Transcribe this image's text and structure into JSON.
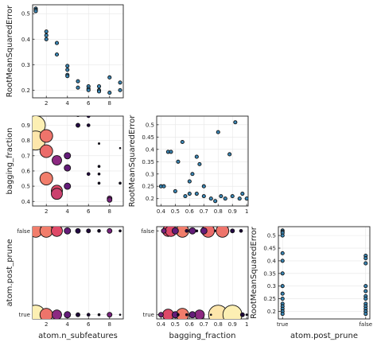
{
  "chart_data": [
    {
      "id": "p11",
      "type": "scatter",
      "xlabel": "",
      "ylabel": "RootMeanSquaredError",
      "xlim": [
        0.7,
        9.3
      ],
      "ylim": [
        0.17,
        0.535
      ],
      "xticks": [
        2,
        4,
        6,
        8
      ],
      "yticks": [
        0.2,
        0.3,
        0.4,
        0.5
      ],
      "grid": true,
      "marker_color": "#3a87b6",
      "points": [
        [
          1,
          0.52
        ],
        [
          1,
          0.515
        ],
        [
          1,
          0.51
        ],
        [
          2,
          0.43
        ],
        [
          2,
          0.415
        ],
        [
          2,
          0.4
        ],
        [
          3,
          0.385
        ],
        [
          3,
          0.34
        ],
        [
          4,
          0.295
        ],
        [
          4,
          0.28
        ],
        [
          4,
          0.26
        ],
        [
          4,
          0.255
        ],
        [
          5,
          0.235
        ],
        [
          5,
          0.21
        ],
        [
          6,
          0.215
        ],
        [
          6,
          0.205
        ],
        [
          6,
          0.2
        ],
        [
          7,
          0.215
        ],
        [
          7,
          0.2
        ],
        [
          7,
          0.195
        ],
        [
          8,
          0.25
        ],
        [
          8,
          0.19
        ],
        [
          9,
          0.23
        ],
        [
          9,
          0.2
        ]
      ]
    },
    {
      "id": "p21",
      "type": "scatter",
      "xlabel": "",
      "ylabel": "bagging_fraction",
      "xlim": [
        0.7,
        9.3
      ],
      "ylim": [
        0.37,
        0.96
      ],
      "xticks": [
        2,
        4,
        6,
        8
      ],
      "yticks": [
        0.4,
        0.5,
        0.6,
        0.7,
        0.8,
        0.9
      ],
      "grid": true,
      "colorscale": [
        "#000004",
        "#3b0f70",
        "#8c2981",
        "#de4968",
        "#fe9f6d",
        "#fcfdbf"
      ],
      "points": [
        {
          "x": 1,
          "y": 0.9,
          "c": 0.97,
          "s": 12
        },
        {
          "x": 1,
          "y": 0.8,
          "c": 0.95,
          "s": 12
        },
        {
          "x": 2,
          "y": 0.83,
          "c": 0.7,
          "s": 8
        },
        {
          "x": 2,
          "y": 0.73,
          "c": 0.68,
          "s": 8
        },
        {
          "x": 2,
          "y": 0.55,
          "c": 0.72,
          "s": 8
        },
        {
          "x": 3,
          "y": 0.67,
          "c": 0.4,
          "s": 6
        },
        {
          "x": 3,
          "y": 0.47,
          "c": 0.6,
          "s": 7
        },
        {
          "x": 3,
          "y": 0.45,
          "c": 0.55,
          "s": 7
        },
        {
          "x": 4,
          "y": 0.7,
          "c": 0.3,
          "s": 4
        },
        {
          "x": 4,
          "y": 0.62,
          "c": 0.3,
          "s": 4
        },
        {
          "x": 4,
          "y": 0.5,
          "c": 0.3,
          "s": 4
        },
        {
          "x": 5,
          "y": 0.97,
          "c": 0.1,
          "s": 2.5
        },
        {
          "x": 5,
          "y": 0.9,
          "c": 0.12,
          "s": 2.5
        },
        {
          "x": 6,
          "y": 0.96,
          "c": 0.08,
          "s": 2
        },
        {
          "x": 6,
          "y": 0.9,
          "c": 0.08,
          "s": 2
        },
        {
          "x": 6,
          "y": 0.58,
          "c": 0.1,
          "s": 2
        },
        {
          "x": 7,
          "y": 1.0,
          "c": 0.05,
          "s": 1.2
        },
        {
          "x": 7,
          "y": 0.78,
          "c": 0.05,
          "s": 1.2
        },
        {
          "x": 7,
          "y": 0.63,
          "c": 0.05,
          "s": 1.5
        },
        {
          "x": 7,
          "y": 0.58,
          "c": 0.05,
          "s": 1.5
        },
        {
          "x": 7,
          "y": 0.52,
          "c": 0.05,
          "s": 1.5
        },
        {
          "x": 8,
          "y": 0.42,
          "c": 0.35,
          "s": 3
        },
        {
          "x": 8,
          "y": 0.41,
          "c": 0.35,
          "s": 3
        },
        {
          "x": 9,
          "y": 0.75,
          "c": 0.05,
          "s": 1
        },
        {
          "x": 9,
          "y": 0.52,
          "c": 0.05,
          "s": 1.5
        }
      ]
    },
    {
      "id": "p22",
      "type": "scatter",
      "xlabel": "",
      "ylabel": "RootMeanSquaredError",
      "xlim": [
        0.37,
        1.01
      ],
      "ylim": [
        0.17,
        0.535
      ],
      "xticks": [
        0.4,
        0.5,
        0.6,
        0.7,
        0.8,
        0.9,
        1.0
      ],
      "yticks": [
        0.2,
        0.25,
        0.3,
        0.35,
        0.4,
        0.45,
        0.5
      ],
      "grid": true,
      "marker_color": "#3a87b6",
      "points": [
        [
          0.4,
          0.25
        ],
        [
          0.42,
          0.25
        ],
        [
          0.45,
          0.39
        ],
        [
          0.47,
          0.39
        ],
        [
          0.5,
          0.23
        ],
        [
          0.52,
          0.35
        ],
        [
          0.55,
          0.43
        ],
        [
          0.57,
          0.21
        ],
        [
          0.6,
          0.22
        ],
        [
          0.6,
          0.27
        ],
        [
          0.62,
          0.3
        ],
        [
          0.65,
          0.37
        ],
        [
          0.65,
          0.22
        ],
        [
          0.67,
          0.34
        ],
        [
          0.7,
          0.25
        ],
        [
          0.7,
          0.21
        ],
        [
          0.75,
          0.2
        ],
        [
          0.78,
          0.19
        ],
        [
          0.8,
          0.47
        ],
        [
          0.82,
          0.21
        ],
        [
          0.85,
          0.2
        ],
        [
          0.88,
          0.38
        ],
        [
          0.9,
          0.21
        ],
        [
          0.92,
          0.51
        ],
        [
          0.95,
          0.2
        ],
        [
          0.97,
          0.22
        ],
        [
          1.0,
          0.2
        ]
      ]
    },
    {
      "id": "p31",
      "type": "scatter",
      "xlabel": "atom.n_subfeatures",
      "ylabel": "atom.post_prune",
      "xlim": [
        0.7,
        9.3
      ],
      "ylim": [
        -0.05,
        1.05
      ],
      "xticks": [
        2,
        4,
        6,
        8
      ],
      "ytick_labels": [
        "true",
        "false"
      ],
      "grid": true,
      "colorscale": [
        "#000004",
        "#3b0f70",
        "#8c2981",
        "#de4968",
        "#fe9f6d",
        "#fcfdbf"
      ],
      "points": [
        {
          "x": 1,
          "y": 1,
          "c": 0.72,
          "s": 8
        },
        {
          "x": 2,
          "y": 1,
          "c": 0.72,
          "s": 8
        },
        {
          "x": 3,
          "y": 1,
          "c": 0.6,
          "s": 7
        },
        {
          "x": 4,
          "y": 1,
          "c": 0.3,
          "s": 4
        },
        {
          "x": 5,
          "y": 1,
          "c": 0.12,
          "s": 3
        },
        {
          "x": 6,
          "y": 1,
          "c": 0.1,
          "s": 2.5
        },
        {
          "x": 7,
          "y": 1,
          "c": 0.05,
          "s": 2
        },
        {
          "x": 8,
          "y": 1,
          "c": 0.35,
          "s": 3
        },
        {
          "x": 9,
          "y": 1,
          "c": 0.05,
          "s": 1.5
        },
        {
          "x": 1,
          "y": 0,
          "c": 0.97,
          "s": 12
        },
        {
          "x": 2,
          "y": 0,
          "c": 0.7,
          "s": 8
        },
        {
          "x": 3,
          "y": 0,
          "c": 0.4,
          "s": 6
        },
        {
          "x": 4,
          "y": 0,
          "c": 0.3,
          "s": 4
        },
        {
          "x": 5,
          "y": 0,
          "c": 0.1,
          "s": 2.5
        },
        {
          "x": 6,
          "y": 0,
          "c": 0.08,
          "s": 2
        },
        {
          "x": 7,
          "y": 0,
          "c": 0.05,
          "s": 1.5
        },
        {
          "x": 8,
          "y": 0,
          "c": 0.35,
          "s": 3
        },
        {
          "x": 9,
          "y": 0,
          "c": 0.05,
          "s": 1
        }
      ]
    },
    {
      "id": "p32",
      "type": "scatter",
      "xlabel": "bagging_fraction",
      "ylabel": "",
      "xlim": [
        0.37,
        1.01
      ],
      "ylim": [
        -0.05,
        1.05
      ],
      "xticks": [
        0.4,
        0.5,
        0.6,
        0.7,
        0.8,
        0.9,
        1.0
      ],
      "ytick_labels": [
        "true",
        "false"
      ],
      "grid": true,
      "colorscale": [
        "#000004",
        "#3b0f70",
        "#8c2981",
        "#de4968",
        "#fe9f6d",
        "#fcfdbf"
      ],
      "points": [
        {
          "x": 0.42,
          "y": 1,
          "c": 0.35,
          "s": 3
        },
        {
          "x": 0.45,
          "y": 1,
          "c": 0.6,
          "s": 7
        },
        {
          "x": 0.47,
          "y": 1,
          "c": 0.6,
          "s": 7
        },
        {
          "x": 0.5,
          "y": 1,
          "c": 0.3,
          "s": 4
        },
        {
          "x": 0.55,
          "y": 1,
          "c": 0.72,
          "s": 8
        },
        {
          "x": 0.58,
          "y": 1,
          "c": 0.1,
          "s": 2
        },
        {
          "x": 0.62,
          "y": 1,
          "c": 0.3,
          "s": 4
        },
        {
          "x": 0.65,
          "y": 1,
          "c": 0.05,
          "s": 1.5
        },
        {
          "x": 0.7,
          "y": 1,
          "c": 0.3,
          "s": 4
        },
        {
          "x": 0.73,
          "y": 1,
          "c": 0.68,
          "s": 8
        },
        {
          "x": 0.78,
          "y": 1,
          "c": 0.05,
          "s": 1.2
        },
        {
          "x": 0.83,
          "y": 1,
          "c": 0.7,
          "s": 8
        },
        {
          "x": 0.9,
          "y": 1,
          "c": 0.12,
          "s": 2.5
        },
        {
          "x": 0.96,
          "y": 1,
          "c": 0.08,
          "s": 2
        },
        {
          "x": 0.4,
          "y": 0,
          "c": 0.35,
          "s": 3
        },
        {
          "x": 0.45,
          "y": 0,
          "c": 0.6,
          "s": 7
        },
        {
          "x": 0.5,
          "y": 0,
          "c": 0.3,
          "s": 4
        },
        {
          "x": 0.52,
          "y": 0,
          "c": 0.05,
          "s": 1.5
        },
        {
          "x": 0.55,
          "y": 0,
          "c": 0.72,
          "s": 8
        },
        {
          "x": 0.58,
          "y": 0,
          "c": 0.05,
          "s": 1.5
        },
        {
          "x": 0.62,
          "y": 0,
          "c": 0.3,
          "s": 4
        },
        {
          "x": 0.67,
          "y": 0,
          "c": 0.4,
          "s": 6
        },
        {
          "x": 0.75,
          "y": 0,
          "c": 0.05,
          "s": 1
        },
        {
          "x": 0.8,
          "y": 0,
          "c": 0.95,
          "s": 12
        },
        {
          "x": 0.9,
          "y": 0,
          "c": 0.97,
          "s": 12
        },
        {
          "x": 0.97,
          "y": 0,
          "c": 0.1,
          "s": 2.5
        },
        {
          "x": 1.0,
          "y": 0,
          "c": 0.05,
          "s": 1.2
        }
      ]
    },
    {
      "id": "p33",
      "type": "scatter",
      "xlabel": "atom.post_prune",
      "ylabel": "RootMeanSquaredError",
      "xlim": [
        -0.05,
        1.05
      ],
      "ylim": [
        0.17,
        0.535
      ],
      "xtick_labels": [
        "true",
        "false"
      ],
      "yticks": [
        0.2,
        0.25,
        0.3,
        0.35,
        0.4,
        0.45,
        0.5
      ],
      "grid": true,
      "marker_color": "#3a87b6",
      "points": [
        [
          0,
          0.52
        ],
        [
          0,
          0.515
        ],
        [
          0,
          0.51
        ],
        [
          0,
          0.5
        ],
        [
          0,
          0.43
        ],
        [
          0,
          0.4
        ],
        [
          0,
          0.35
        ],
        [
          0,
          0.3
        ],
        [
          0,
          0.27
        ],
        [
          0,
          0.25
        ],
        [
          0,
          0.23
        ],
        [
          0,
          0.22
        ],
        [
          0,
          0.21
        ],
        [
          0,
          0.2
        ],
        [
          0,
          0.19
        ],
        [
          1,
          0.42
        ],
        [
          1,
          0.41
        ],
        [
          1,
          0.39
        ],
        [
          1,
          0.3
        ],
        [
          1,
          0.28
        ],
        [
          1,
          0.26
        ],
        [
          1,
          0.25
        ],
        [
          1,
          0.23
        ],
        [
          1,
          0.22
        ],
        [
          1,
          0.21
        ],
        [
          1,
          0.2
        ],
        [
          1,
          0.19
        ]
      ]
    }
  ]
}
